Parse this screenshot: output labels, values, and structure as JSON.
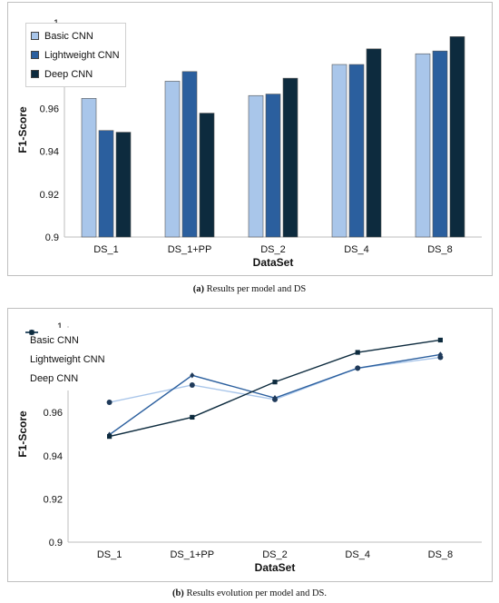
{
  "chart_data": [
    {
      "type": "bar",
      "categories": [
        "DS_1",
        "DS_1+PP",
        "DS_2",
        "DS_4",
        "DS_8"
      ],
      "series": [
        {
          "name": "Basic CNN",
          "color": "#a9c6ea",
          "values": [
            0.9647,
            0.9727,
            0.966,
            0.9805,
            0.9855
          ]
        },
        {
          "name": "Lightweight CNN",
          "color": "#2b5f9e",
          "values": [
            0.9497,
            0.9772,
            0.9667,
            0.9805,
            0.9868
          ]
        },
        {
          "name": "Deep CNN",
          "color": "#0d2b3e",
          "values": [
            0.9489,
            0.9578,
            0.9741,
            0.9878,
            0.9935
          ]
        }
      ],
      "xlabel": "DataSet",
      "ylabel": "F1-Score",
      "ylim": [
        0.9,
        1.0
      ],
      "yticks": [
        "0.9",
        "0.92",
        "0.94",
        "0.96",
        "0.98",
        "1"
      ],
      "legend": "top-left",
      "grid": false
    },
    {
      "type": "line",
      "categories": [
        "DS_1",
        "DS_1+PP",
        "DS_2",
        "DS_4",
        "DS_8"
      ],
      "series": [
        {
          "name": "Basic CNN",
          "color": "#a9c6ea",
          "marker_color": "#1f3a5a",
          "marker": "circle",
          "values": [
            0.9647,
            0.9727,
            0.966,
            0.9805,
            0.9855
          ]
        },
        {
          "name": "Lightweight CNN",
          "color": "#2b5f9e",
          "marker_color": "#1f3a5a",
          "marker": "diamond",
          "values": [
            0.9497,
            0.9772,
            0.9667,
            0.9805,
            0.9868
          ]
        },
        {
          "name": "Deep CNN",
          "color": "#0d2b3e",
          "marker_color": "#0d2b3e",
          "marker": "square",
          "values": [
            0.9489,
            0.9578,
            0.9741,
            0.9878,
            0.9935
          ]
        }
      ],
      "xlabel": "DataSet",
      "ylabel": "F1-Score",
      "ylim": [
        0.9,
        1.0
      ],
      "yticks": [
        "0.9",
        "0.92",
        "0.94",
        "0.96",
        "0.98",
        "1"
      ],
      "legend": "top-left",
      "grid": false
    }
  ],
  "captions": {
    "a_label": "(a)",
    "a_text": " Results per model and DS",
    "b_label": "(b)",
    "b_text": " Results evolution per model and DS."
  }
}
